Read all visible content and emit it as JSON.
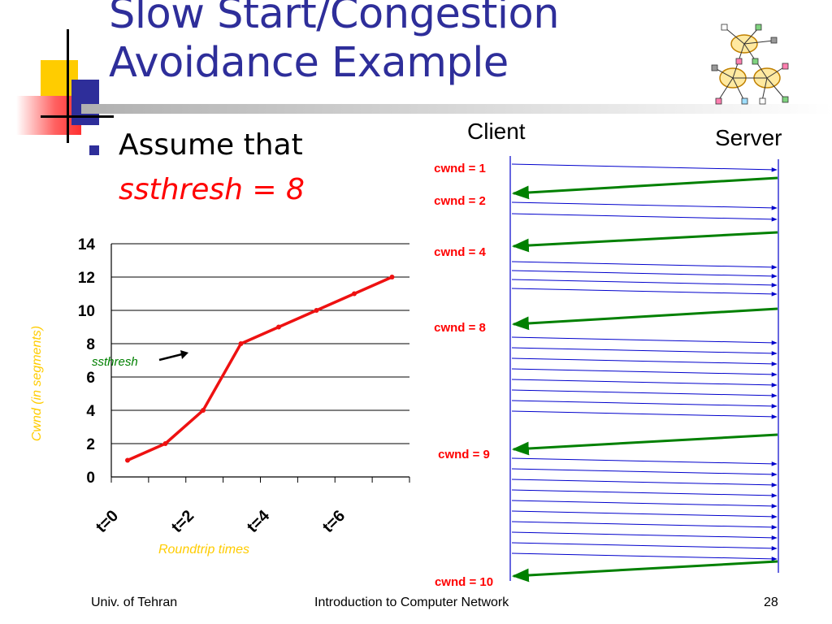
{
  "slide": {
    "title_line1": "Slow Start/Congestion",
    "title_line2": "Avoidance Example",
    "bullet_text": "Assume that",
    "bullet_highlight": "ssthresh = 8",
    "footer_left": "Univ. of Tehran",
    "footer_center": "Introduction to Computer Network",
    "footer_page": "28"
  },
  "colors": {
    "title": "#2e2e9a",
    "red": "#ff0000",
    "green": "#008000",
    "blue": "#0000cc",
    "axis_label": "#ffcc00"
  },
  "chart_data": {
    "type": "line",
    "xlabel": "Roundtrip times",
    "ylabel": "Cwnd (in segments)",
    "ylim": [
      0,
      14
    ],
    "yticks": [
      "0",
      "2",
      "4",
      "6",
      "8",
      "10",
      "12",
      "14"
    ],
    "xticks": [
      "t=0",
      "t=2",
      "t=4",
      "t=6"
    ],
    "grid": "horizontal",
    "annotation": "ssthresh",
    "series": [
      {
        "x": [
          0,
          1,
          2,
          3,
          4,
          5,
          6,
          7
        ],
        "values": [
          1,
          2,
          4,
          8,
          9,
          10,
          11,
          12
        ]
      }
    ]
  },
  "timing": {
    "client_label": "Client",
    "server_label": "Server",
    "cwnd_labels": [
      "cwnd = 1",
      "cwnd = 2",
      "cwnd = 4",
      "cwnd = 8",
      "cwnd = 9",
      "cwnd = 10"
    ]
  }
}
